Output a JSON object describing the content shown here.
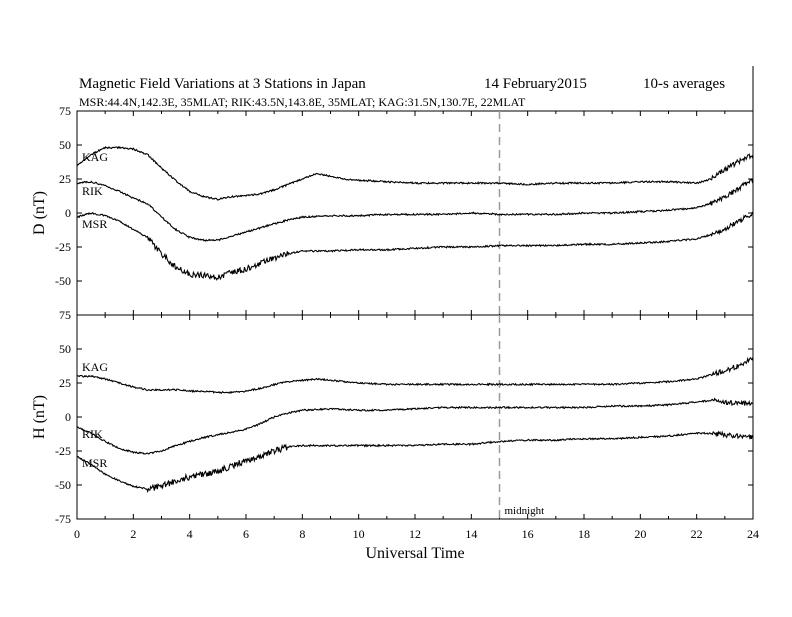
{
  "chart_data": {
    "type": "line",
    "title": "Magnetic Field Variations at 3 Stations in Japan",
    "date": "14 February2015",
    "averaging": "10-s averages",
    "subtitle": "MSR:44.4N,142.3E, 35MLAT;   RIK:43.5N,143.8E, 35MLAT;   KAG:31.5N,130.7E, 22MLAT",
    "xlabel": "Universal Time",
    "xlim": [
      0,
      24
    ],
    "xticks": [
      0,
      2,
      4,
      6,
      8,
      10,
      12,
      14,
      16,
      18,
      20,
      22,
      24
    ],
    "grid": false,
    "annotation": {
      "text": "midnight",
      "x": 15,
      "style": "dashed vertical line"
    },
    "panels": [
      {
        "id": "D",
        "ylabel": "D (nT)",
        "ylim": [
          -75,
          75
        ],
        "yticks": [
          75,
          50,
          25,
          0,
          -25,
          -50,
          -75
        ],
        "series": [
          {
            "name": "KAG",
            "x": [
              0,
              0.5,
              1,
              1.5,
              2,
              2.5,
              3,
              3.5,
              4,
              4.5,
              5,
              5.5,
              6,
              6.5,
              7,
              7.5,
              8,
              8.5,
              9,
              9.5,
              10,
              11,
              12,
              13,
              14,
              15,
              16,
              17,
              18,
              19,
              20,
              21,
              22,
              22.5,
              23,
              23.5,
              24
            ],
            "y": [
              35,
              43,
              48,
              48,
              47,
              43,
              33,
              24,
              16,
              12,
              10,
              12,
              13,
              14,
              17,
              21,
              25,
              29,
              27,
              25,
              24,
              23,
              22,
              22,
              22,
              22,
              21,
              22,
              22,
              22,
              23,
              23,
              22,
              25,
              32,
              38,
              43
            ]
          },
          {
            "name": "RIK",
            "x": [
              0,
              0.5,
              1,
              1.5,
              2,
              2.5,
              3,
              3.5,
              4,
              4.5,
              5,
              5.5,
              6,
              6.5,
              7,
              7.5,
              8,
              9,
              10,
              11,
              12,
              13,
              14,
              15,
              16,
              17,
              18,
              19,
              20,
              21,
              22,
              22.5,
              23,
              23.5,
              24
            ],
            "y": [
              22,
              23,
              20,
              16,
              11,
              7,
              -3,
              -12,
              -18,
              -20,
              -20,
              -17,
              -14,
              -11,
              -8,
              -5,
              -3,
              -2,
              -2,
              -1,
              -1,
              -1,
              0,
              -1,
              -1,
              -1,
              0,
              0,
              1,
              2,
              4,
              7,
              12,
              18,
              25
            ]
          },
          {
            "name": "MSR",
            "x": [
              0,
              0.5,
              1,
              1.5,
              2,
              2.5,
              3,
              3.5,
              4,
              4.5,
              5,
              5.5,
              6,
              6.5,
              7,
              7.5,
              8,
              9,
              10,
              11,
              12,
              13,
              14,
              15,
              16,
              17,
              18,
              19,
              20,
              21,
              22,
              22.5,
              23,
              23.5,
              24
            ],
            "y": [
              -3,
              0,
              -2,
              -6,
              -12,
              -18,
              -30,
              -40,
              -45,
              -46,
              -47,
              -44,
              -41,
              -37,
              -33,
              -30,
              -28,
              -28,
              -27,
              -27,
              -26,
              -25,
              -25,
              -24,
              -24,
              -24,
              -23,
              -23,
              -22,
              -21,
              -19,
              -16,
              -12,
              -6,
              0
            ]
          }
        ]
      },
      {
        "id": "H",
        "ylabel": "H (nT)",
        "ylim": [
          -75,
          75
        ],
        "yticks": [
          75,
          50,
          25,
          0,
          -25,
          -50,
          -75
        ],
        "series": [
          {
            "name": "KAG",
            "x": [
              0,
              0.5,
              1,
              1.5,
              2,
              2.5,
              3,
              3.5,
              4,
              4.5,
              5,
              5.5,
              6,
              6.5,
              7,
              7.5,
              8,
              8.5,
              9,
              10,
              11,
              12,
              13,
              14,
              15,
              16,
              17,
              18,
              19,
              20,
              21,
              22,
              22.5,
              23,
              23.5,
              24
            ],
            "y": [
              30,
              30,
              28,
              25,
              22,
              20,
              20,
              20,
              19,
              19,
              18,
              18,
              19,
              21,
              24,
              26,
              27,
              28,
              27,
              25,
              24,
              24,
              24,
              24,
              24,
              24,
              24,
              24,
              24,
              25,
              26,
              28,
              31,
              34,
              38,
              43
            ]
          },
          {
            "name": "RIK",
            "x": [
              0,
              0.5,
              1,
              1.5,
              2,
              2.5,
              3,
              3.5,
              4,
              4.5,
              5,
              5.5,
              6,
              6.5,
              7,
              7.5,
              8,
              9,
              10,
              11,
              12,
              13,
              14,
              15,
              16,
              17,
              18,
              19,
              20,
              21,
              22,
              22.5,
              23,
              23.5,
              24
            ],
            "y": [
              -7,
              -12,
              -18,
              -23,
              -26,
              -27,
              -25,
              -21,
              -18,
              -15,
              -13,
              -11,
              -9,
              -5,
              0,
              3,
              5,
              6,
              5,
              5,
              6,
              7,
              7,
              7,
              7,
              7,
              7,
              8,
              8,
              9,
              11,
              12,
              11,
              10,
              10
            ]
          },
          {
            "name": "MSR",
            "x": [
              0,
              0.5,
              1,
              1.5,
              2,
              2.5,
              3,
              3.5,
              4,
              4.5,
              5,
              5.5,
              6,
              6.5,
              7,
              7.5,
              8,
              9,
              10,
              11,
              12,
              13,
              14,
              15,
              16,
              17,
              18,
              19,
              20,
              21,
              22,
              22.5,
              23,
              23.5,
              24
            ],
            "y": [
              -29,
              -35,
              -42,
              -47,
              -51,
              -53,
              -51,
              -47,
              -44,
              -42,
              -40,
              -36,
              -32,
              -29,
              -25,
              -22,
              -21,
              -21,
              -21,
              -21,
              -21,
              -20,
              -20,
              -18,
              -17,
              -17,
              -16,
              -16,
              -15,
              -14,
              -12,
              -12,
              -13,
              -14,
              -15
            ]
          }
        ]
      }
    ]
  }
}
